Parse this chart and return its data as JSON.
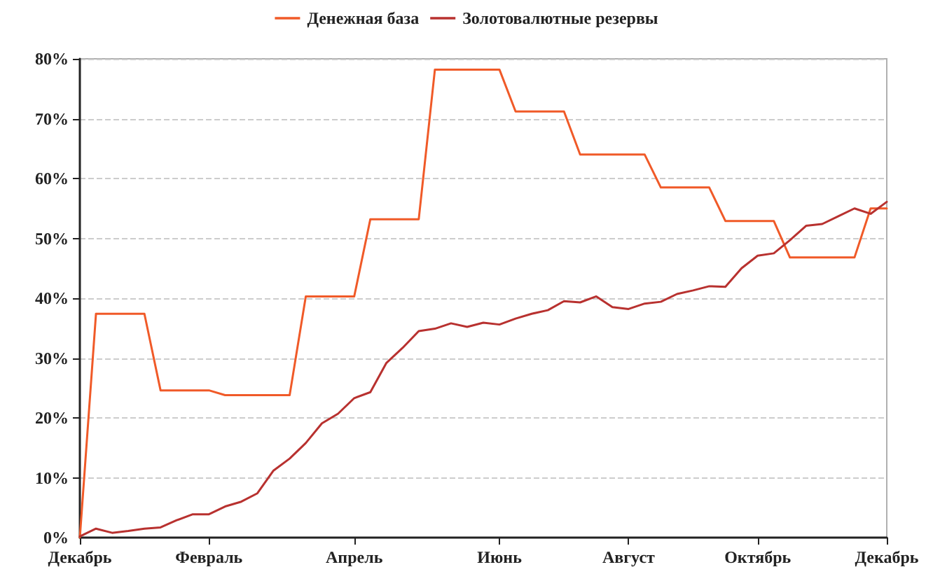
{
  "chart_data": {
    "type": "line",
    "categories": [
      "Декабрь",
      null,
      null,
      null,
      null,
      null,
      null,
      null,
      "Февраль",
      null,
      null,
      null,
      null,
      null,
      null,
      null,
      null,
      "Апрель",
      null,
      null,
      null,
      null,
      null,
      null,
      null,
      null,
      "Июнь",
      null,
      null,
      null,
      null,
      null,
      null,
      null,
      "Август",
      null,
      null,
      null,
      null,
      null,
      null,
      null,
      "Октябрь",
      null,
      null,
      null,
      null,
      null,
      null,
      null,
      "Декабрь"
    ],
    "series": [
      {
        "name": "Денежная база",
        "color": "#f05a28",
        "values": [
          0,
          37.4,
          37.4,
          37.4,
          37.4,
          24.6,
          24.6,
          24.6,
          24.6,
          23.8,
          23.8,
          23.8,
          23.8,
          23.8,
          40.3,
          40.3,
          40.3,
          40.3,
          53.2,
          53.2,
          53.2,
          53.2,
          78.2,
          78.2,
          78.2,
          78.2,
          78.2,
          71.2,
          71.2,
          71.2,
          71.2,
          64.0,
          64.0,
          64.0,
          64.0,
          64.0,
          58.5,
          58.5,
          58.5,
          58.5,
          52.9,
          52.9,
          52.9,
          52.9,
          46.8,
          46.8,
          46.8,
          46.8,
          46.8,
          55.0,
          55.0
        ]
      },
      {
        "name": "Золотовалютные резервы",
        "color": "#b8312f",
        "values": [
          0.2,
          1.5,
          0.8,
          1.1,
          1.5,
          1.7,
          2.9,
          3.9,
          3.9,
          5.2,
          6.0,
          7.4,
          11.2,
          13.2,
          15.8,
          19.1,
          20.7,
          23.3,
          24.3,
          29.2,
          31.7,
          34.5,
          34.9,
          35.8,
          35.2,
          35.9,
          35.6,
          36.6,
          37.4,
          38.0,
          39.5,
          39.3,
          40.3,
          38.5,
          38.2,
          39.1,
          39.4,
          40.7,
          41.3,
          42.0,
          41.9,
          45.0,
          47.1,
          47.5,
          49.7,
          52.1,
          52.4,
          53.7,
          55.0,
          54.1,
          56.1
        ]
      }
    ],
    "ylim": [
      0,
      80
    ],
    "yticks": [
      {
        "value": 0,
        "label": "0%"
      },
      {
        "value": 10,
        "label": "10%"
      },
      {
        "value": 20,
        "label": "20%"
      },
      {
        "value": 30,
        "label": "30%"
      },
      {
        "value": 40,
        "label": "40%"
      },
      {
        "value": 50,
        "label": "50%"
      },
      {
        "value": 60,
        "label": "60%"
      },
      {
        "value": 70,
        "label": "70%"
      },
      {
        "value": 80,
        "label": "80%"
      }
    ],
    "grid": "y",
    "legend": "top",
    "marker": "none",
    "line_style": "solid"
  }
}
